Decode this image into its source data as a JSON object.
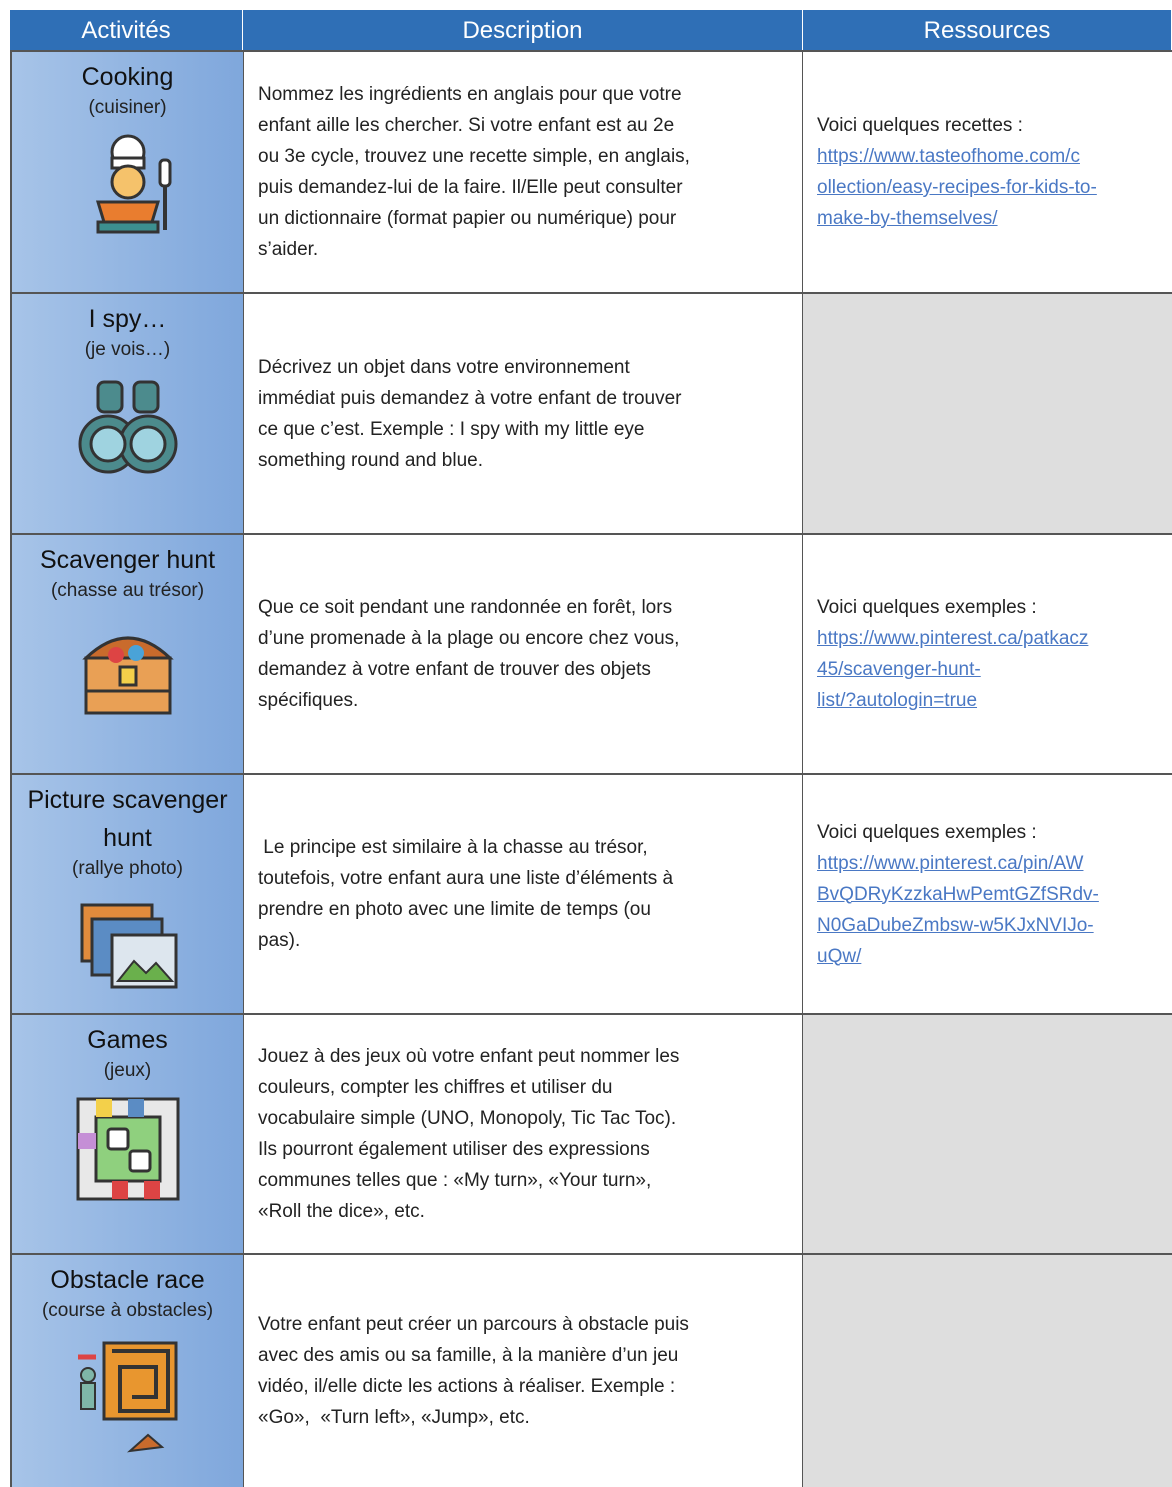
{
  "header": {
    "activities": "Activités",
    "description": "Description",
    "resources": "Ressources"
  },
  "rows": [
    {
      "title": "Cooking",
      "subtitle": "(cuisiner)",
      "description": [
        "Nommez les ingrédients en anglais pour que votre",
        "enfant aille les chercher. Si votre enfant est au 2e",
        "ou 3e cycle, trouvez une recette simple, en anglais,",
        "puis demandez-lui de la faire. Il/Elle peut consulter",
        "un dictionnaire (format papier ou numérique) pour",
        "s’aider."
      ],
      "resources": {
        "text": "Voici quelques recettes :",
        "link": [
          "https://www.tasteofhome.com/c",
          "ollection/easy-recipes-for-kids-to-",
          "make-by-themselves/"
        ]
      }
    },
    {
      "title": "I spy…",
      "subtitle": "(je vois…)",
      "description": [
        "Décrivez un objet dans votre environnement",
        "immédiat puis demandez à votre enfant de trouver",
        "ce que c’est. Exemple : I spy with my little eye",
        "something round and blue."
      ]
    },
    {
      "title": "Scavenger hunt",
      "subtitle": "(chasse au trésor)",
      "description": [
        "Que ce soit pendant une randonnée en forêt, lors",
        "d’une promenade à la plage ou encore chez vous,",
        "demandez à votre enfant de trouver des objets",
        "spécifiques."
      ],
      "resources": {
        "text": "Voici quelques exemples :",
        "link": [
          "https://www.pinterest.ca/patkacz",
          "45/scavenger-hunt-",
          "list/?autologin=true"
        ]
      }
    },
    {
      "title": "Picture scavenger hunt",
      "subtitle": "(rallye photo)",
      "description": [
        " Le principe est similaire à la chasse au trésor,",
        "toutefois, votre enfant aura une liste d’éléments à",
        "prendre en photo avec une limite de temps (ou",
        "pas)."
      ],
      "resources": {
        "text": "Voici quelques exemples :",
        "link": [
          "https://www.pinterest.ca/pin/AW",
          "BvQDRyKzzkaHwPemtGZfSRdv-",
          "N0GaDubeZmbsw-w5KJxNVIJo-",
          "uQw/"
        ]
      }
    },
    {
      "title": "Games",
      "subtitle": "(jeux)",
      "description": [
        "Jouez à des jeux où votre enfant peut nommer les",
        "couleurs, compter les chiffres et utiliser du",
        "vocabulaire simple (UNO, Monopoly, Tic Tac Toc).",
        "Ils pourront également utiliser des expressions",
        "communes telles que : «My turn», «Your turn»,",
        "«Roll the dice», etc."
      ]
    },
    {
      "title": "Obstacle race",
      "subtitle": "(course à obstacles)",
      "description": [
        "Votre enfant peut créer un parcours à obstacle puis",
        "avec des amis ou sa famille, à la manière d’un jeu",
        "vidéo, il/elle dicte les actions à réaliser. Exemple :",
        "«Go»,  «Turn left», «Jump», etc."
      ]
    }
  ]
}
